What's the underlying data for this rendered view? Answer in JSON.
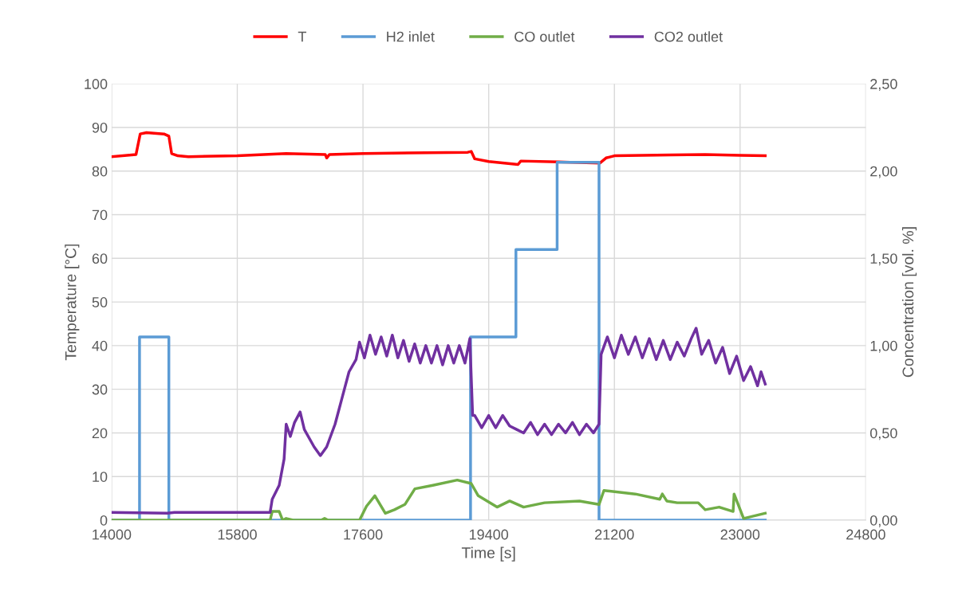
{
  "chart_data": {
    "type": "line",
    "xlabel": "Time [s]",
    "ylabel": "Temperature [°C]",
    "y2label": "Concentration [vol. %]",
    "xlim": [
      14000,
      24800
    ],
    "xticks": [
      14000,
      15800,
      17600,
      19400,
      21200,
      23000,
      24800
    ],
    "ylim": [
      0,
      100
    ],
    "yticks": [
      0,
      10,
      20,
      30,
      40,
      50,
      60,
      70,
      80,
      90,
      100
    ],
    "y2lim": [
      0,
      2.5
    ],
    "y2ticks": [
      {
        "value": 0,
        "label": "0,00"
      },
      {
        "value": 0.5,
        "label": "0,50"
      },
      {
        "value": 1,
        "label": "1,00"
      },
      {
        "value": 1.5,
        "label": "1,50"
      },
      {
        "value": 2,
        "label": "2,00"
      },
      {
        "value": 2.5,
        "label": "2,50"
      }
    ],
    "grid": true,
    "legend": "top",
    "marker": "none",
    "line_style": "solid",
    "series": [
      {
        "name": "T",
        "color": "#ff0000",
        "x": [
          14000,
          14350,
          14410,
          14500,
          14750,
          14820,
          14860,
          14950,
          15100,
          15800,
          16500,
          17060,
          17080,
          17120,
          17600,
          18500,
          19100,
          19150,
          19200,
          19400,
          19820,
          19860,
          20400,
          20990,
          21080,
          21200,
          22000,
          22500,
          23000,
          23360
        ],
        "values": [
          83.3,
          83.8,
          88.5,
          88.8,
          88.5,
          88,
          84,
          83.5,
          83.3,
          83.5,
          84,
          83.8,
          83,
          83.8,
          84,
          84.2,
          84.3,
          84.5,
          82.8,
          82.2,
          81.5,
          82.3,
          82.1,
          81.8,
          83,
          83.5,
          83.7,
          83.8,
          83.6,
          83.5
        ]
      },
      {
        "name": "H2 inlet",
        "color": "#5b9bd5",
        "axis": "y2",
        "x": [
          14000,
          14400,
          14400,
          14820,
          14820,
          19140,
          19140,
          19790,
          19790,
          20380,
          20380,
          20980,
          20980,
          23360
        ],
        "values": [
          0,
          0,
          1.05,
          1.05,
          0,
          0,
          1.05,
          1.05,
          1.55,
          1.55,
          2.05,
          2.05,
          0,
          0
        ]
      },
      {
        "name": "CO outlet",
        "color": "#70ad47",
        "axis": "y2",
        "x": [
          14000,
          16270,
          16300,
          16400,
          16450,
          16500,
          16600,
          17000,
          17050,
          17100,
          17550,
          17650,
          17770,
          17920,
          18050,
          18200,
          18343,
          18600,
          18950,
          19150,
          19250,
          19520,
          19700,
          19900,
          20200,
          20700,
          20980,
          21050,
          21500,
          21850,
          21886,
          21950,
          22100,
          22400,
          22500,
          22700,
          22900,
          22914,
          23050,
          23360
        ],
        "values": [
          0,
          0,
          0.05,
          0.05,
          0,
          0.01,
          0,
          0,
          0.01,
          0,
          0,
          0.08,
          0.14,
          0.04,
          0.06,
          0.09,
          0.18,
          0.2,
          0.23,
          0.21,
          0.14,
          0.075,
          0.11,
          0.075,
          0.1,
          0.11,
          0.09,
          0.17,
          0.15,
          0.12,
          0.15,
          0.11,
          0.1,
          0.1,
          0.06,
          0.075,
          0.05,
          0.15,
          0.01,
          0.04
        ]
      },
      {
        "name": "CO2 outlet",
        "color": "#7030a0",
        "axis": "y2",
        "x": [
          14000,
          14800,
          14900,
          16270,
          16300,
          16400,
          16470,
          16500,
          16560,
          16620,
          16700,
          16760,
          16900,
          16990,
          17080,
          17200,
          17300,
          17400,
          17500,
          17550,
          17620,
          17700,
          17780,
          17860,
          17940,
          18020,
          18100,
          18180,
          18260,
          18340,
          18420,
          18500,
          18580,
          18660,
          18740,
          18820,
          18900,
          18980,
          19060,
          19130,
          19170,
          19200,
          19300,
          19400,
          19500,
          19600,
          19700,
          19800,
          19900,
          20000,
          20100,
          20200,
          20300,
          20400,
          20500,
          20600,
          20700,
          20800,
          20900,
          20980,
          21010,
          21100,
          21200,
          21300,
          21400,
          21500,
          21600,
          21700,
          21800,
          21900,
          22000,
          22100,
          22200,
          22300,
          22370,
          22450,
          22550,
          22650,
          22750,
          22850,
          22950,
          23050,
          23150,
          23250,
          23300,
          23360
        ],
        "values": [
          0.045,
          0.04,
          0.045,
          0.045,
          0.12,
          0.2,
          0.35,
          0.55,
          0.48,
          0.56,
          0.62,
          0.52,
          0.42,
          0.37,
          0.42,
          0.55,
          0.7,
          0.85,
          0.92,
          1.02,
          0.93,
          1.06,
          0.95,
          1.05,
          0.94,
          1.06,
          0.93,
          1.03,
          0.91,
          1.01,
          0.9,
          1.0,
          0.9,
          1.0,
          0.89,
          1.0,
          0.9,
          1.0,
          0.9,
          1.04,
          0.6,
          0.6,
          0.53,
          0.6,
          0.53,
          0.6,
          0.54,
          0.52,
          0.5,
          0.56,
          0.49,
          0.55,
          0.49,
          0.55,
          0.5,
          0.56,
          0.49,
          0.55,
          0.5,
          0.55,
          0.95,
          1.05,
          0.93,
          1.06,
          0.95,
          1.05,
          0.93,
          1.04,
          0.92,
          1.03,
          0.92,
          1.02,
          0.94,
          1.04,
          1.1,
          0.95,
          1.03,
          0.9,
          0.99,
          0.84,
          0.94,
          0.8,
          0.88,
          0.77,
          0.85,
          0.78
        ]
      }
    ]
  }
}
